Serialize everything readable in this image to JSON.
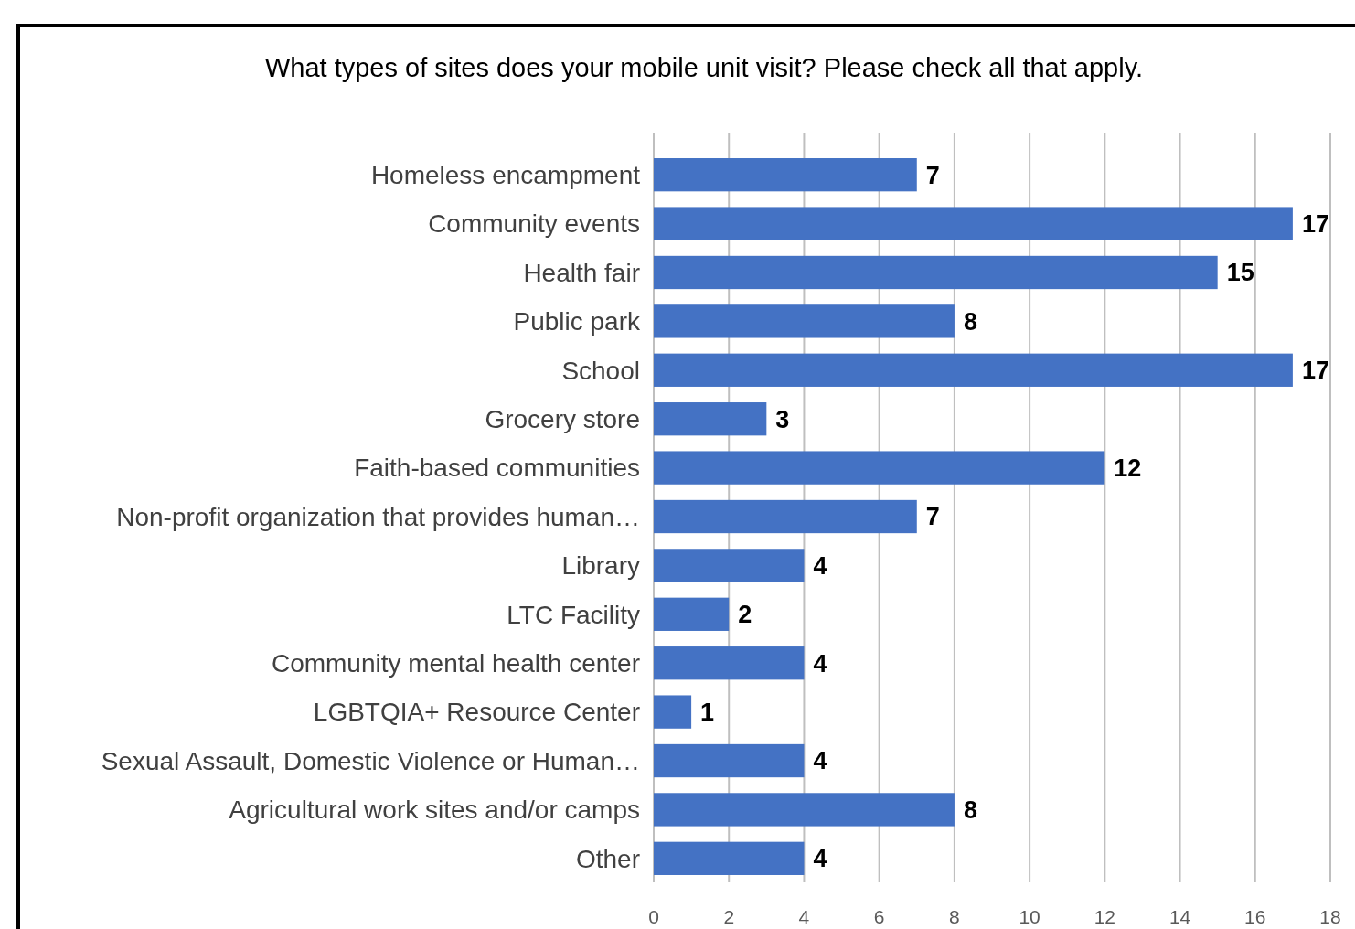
{
  "chart_data": {
    "type": "bar",
    "orientation": "horizontal",
    "title": "What types of sites does your mobile unit visit? Please check all that apply.",
    "categories": [
      "Homeless encampment",
      "Community events",
      "Health fair",
      "Public park",
      "School",
      "Grocery store",
      "Faith-based communities",
      "Non-profit organization that provides human…",
      "Library",
      "LTC Facility",
      "Community mental health center",
      "LGBTQIA+ Resource Center",
      "Sexual Assault, Domestic Violence or Human…",
      "Agricultural work sites and/or camps",
      "Other"
    ],
    "values": [
      7,
      17,
      15,
      8,
      17,
      3,
      12,
      7,
      4,
      2,
      4,
      1,
      4,
      8,
      4
    ],
    "color": "#4472c4",
    "xlim": [
      0,
      18
    ],
    "xticks": [
      0,
      2,
      4,
      6,
      8,
      10,
      12,
      14,
      16,
      18
    ],
    "grid": "x",
    "data_labels": true
  }
}
